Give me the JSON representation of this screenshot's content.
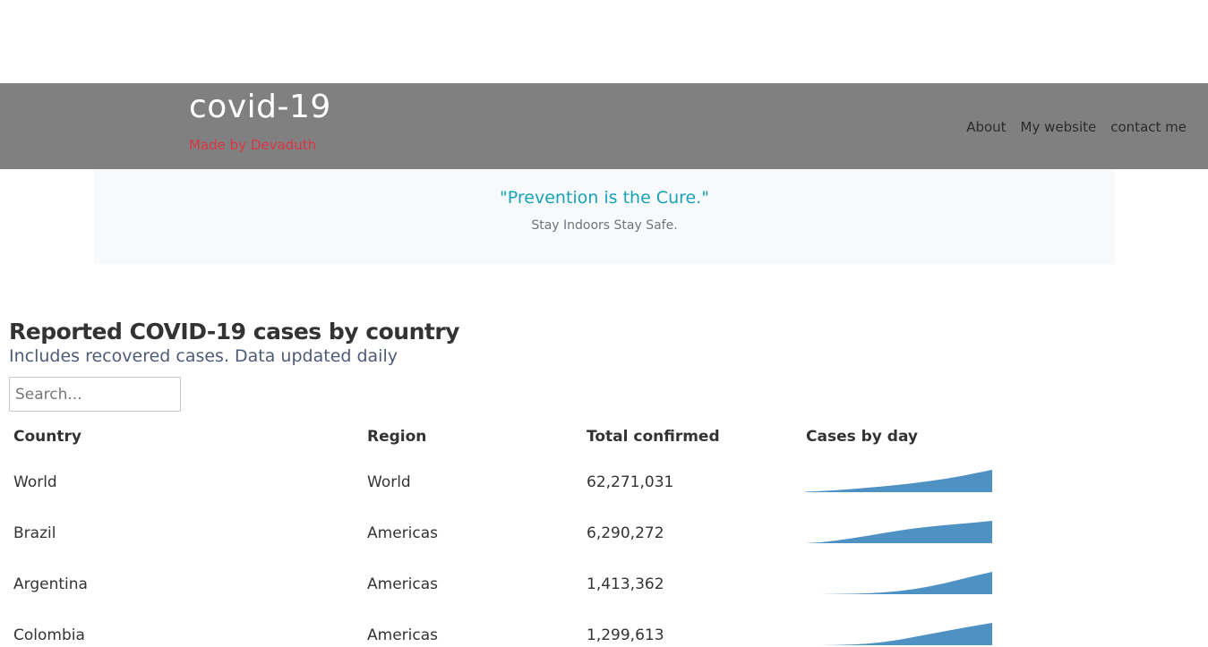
{
  "header": {
    "title": "covid-19",
    "subtitle": "Made by Devaduth",
    "nav": [
      {
        "label": "About"
      },
      {
        "label": "My website"
      },
      {
        "label": "contact me"
      }
    ]
  },
  "banner": {
    "quote": "\"Prevention is the Cure.\"",
    "text": "Stay Indoors Stay Safe."
  },
  "section": {
    "title": "Reported COVID-19 cases by country",
    "subtitle": "Includes recovered cases. Data updated daily"
  },
  "search": {
    "placeholder": "Search...",
    "value": ""
  },
  "table": {
    "columns": [
      "Country",
      "Region",
      "Total confirmed",
      "Cases by day"
    ],
    "rows": [
      {
        "country": "World",
        "region": "World",
        "total": "62,271,031",
        "trend": [
          0.02,
          0.05,
          0.09,
          0.14,
          0.2,
          0.26,
          0.33,
          0.41,
          0.5,
          0.6,
          0.72,
          0.86,
          1.0
        ]
      },
      {
        "country": "Brazil",
        "region": "Americas",
        "total": "6,290,272",
        "trend": [
          0.0,
          0.04,
          0.12,
          0.22,
          0.33,
          0.45,
          0.56,
          0.66,
          0.74,
          0.81,
          0.87,
          0.93,
          1.0
        ]
      },
      {
        "country": "Argentina",
        "region": "Americas",
        "total": "1,413,362",
        "trend": [
          0.0,
          0.0,
          0.01,
          0.02,
          0.04,
          0.08,
          0.14,
          0.23,
          0.35,
          0.5,
          0.67,
          0.84,
          1.0
        ]
      },
      {
        "country": "Colombia",
        "region": "Americas",
        "total": "1,299,613",
        "trend": [
          0.0,
          0.0,
          0.01,
          0.03,
          0.07,
          0.14,
          0.24,
          0.37,
          0.5,
          0.63,
          0.76,
          0.88,
          1.0
        ]
      }
    ]
  },
  "colors": {
    "navbar": "#808080",
    "sparkline": "#4e92c3",
    "brand_subtitle": "#dc3545",
    "quote": "#17a2b8"
  }
}
